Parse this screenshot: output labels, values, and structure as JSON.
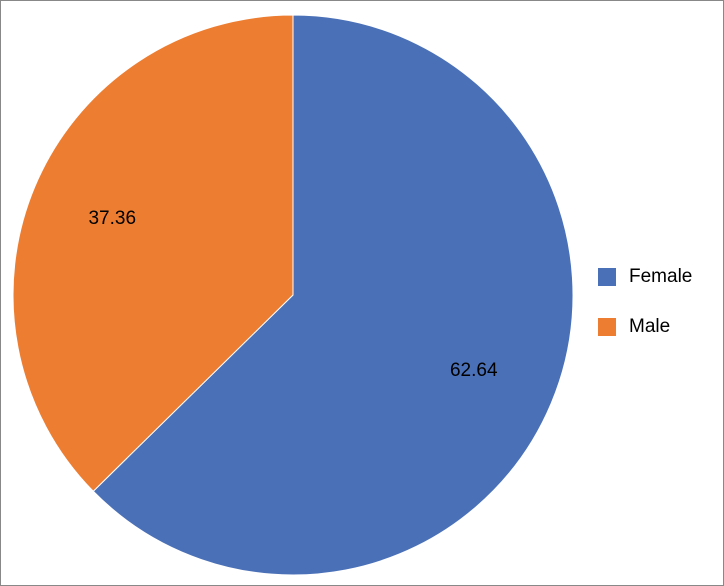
{
  "chart_data": {
    "type": "pie",
    "categories": [
      "Female",
      "Male"
    ],
    "values": [
      62.64,
      37.36
    ],
    "colors": [
      "#4a70b7",
      "#ed7d31"
    ],
    "legend": "right"
  }
}
